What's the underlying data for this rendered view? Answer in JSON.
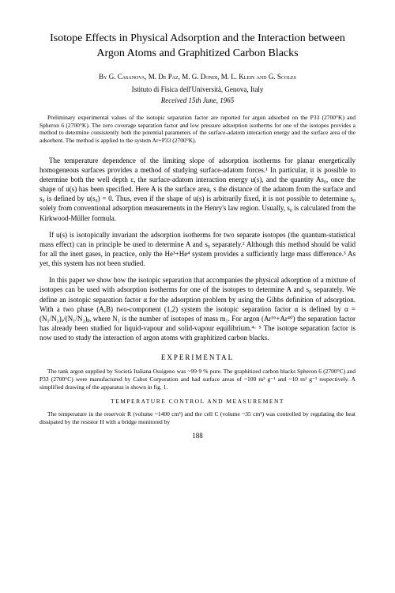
{
  "title": "Isotope Effects in Physical Adsorption and the Interaction between Argon Atoms and Graphitized Carbon Blacks",
  "byline_prefix": "By ",
  "authors": "G. Casanova, M. De Paz, M. G. Dondi, M. L. Klein and G. Scoles",
  "affiliation": "Istituto di Fisica dell'Università, Genova, Italy",
  "received": "Received 15th June, 1965",
  "abstract": "Preliminary experimental values of the isotopic separation factor are reported for argon adsorbed on the P33 (2700°K) and Spheron 6 (2700°K). The zero coverage separation factor and low pressure adsorption isotherms for one of the isotopes provides a method to determine consistently both the potential parameters of the surface-adatom interaction energy and the surface area of the adsorbent. The method is applied to the system Ar+P33 (2700°K).",
  "para1": "The temperature dependence of the limiting slope of adsorption isotherms for planar energetically homogeneous surfaces provides a method of studying surface-adatom forces.¹ In particular, it is possible to determine both the well depth ε, the surface-adatom interaction energy u(s), and the quantity As₀, once the shape of u(s) has been specified. Here A is the surface area, s the distance of the adatom from the surface and s₀ is defined by u(s₀) = 0. Thus, even if the shape of u(s) is arbitrarily fixed, it is not possible to determine s₀ solely from conventional adsorption measurements in the Henry's law region. Usually, s₀ is calculated from the Kirkwood-Müller formula.",
  "para2": "If u(s) is isotopically invariant the adsorption isotherms for two separate isotopes (the quantum-statistical mass effect) can in principle be used to determine A and s₀ separately.² Although this method should be valid for all the inert gases, in practice, only the He³+He⁴ system provides a sufficiently large mass difference.³ As yet, this system has not been studied.",
  "para3": "In this paper we show how the isotopic separation that accompanies the physical adsorption of a mixture of isotopes can be used with adsorption isotherms for one of the isotopes to determine A and s₀ separately. We define an isotopic separation factor α for the adsorption problem by using the Gibbs definition of adsorption. With a two phase (A,B) two-component (1,2) system the isotopic separation factor α is defined by α = (N₁/N₂)ₐ/(N₁/N₂)ᵦ, where N₁ is the number of isotopes of mass m₁. For argon (Ar³⁶+Ar⁴⁰) the separation factor has already been studied for liquid-vapour and solid-vapour equilibrium.⁴· ⁵ The isotope separation factor is now used to study the interaction of argon atoms with graphitized carbon blacks.",
  "section_exp": "EXPERIMENTAL",
  "exp_para1": "The tank argon supplied by Società Italiana Ossigeno was ~99·9 % pure. The graphitized carbon blacks Spheron 6 (2700°C) and P33 (2700°C) were manufactured by Cabot Corporation and had surface areas of ~100 m² g⁻¹ and ~10 m² g⁻¹ respectively. A simplified drawing of the apparatus is shown in fig. 1.",
  "sub_temp": "TEMPERATURE CONTROL AND MEASUREMENT",
  "temp_para": "The temperature in the reservoir R (volume ~1400 cm³) and the cell C (volume ~35 cm³) was controlled by regulating the heat dissipated by the resistor H with a bridge monitored by",
  "page_number": "188"
}
